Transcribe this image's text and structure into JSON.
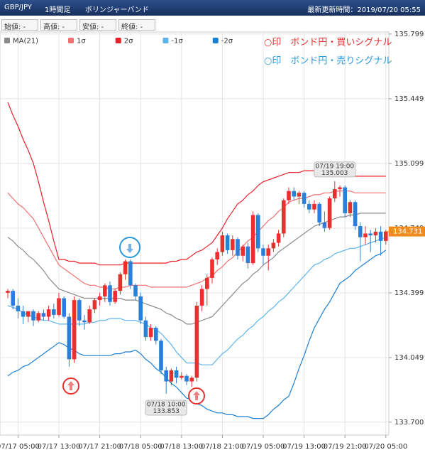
{
  "chart_data": {
    "type": "candlestick",
    "title": "GBP/JPY",
    "timeframe": "1時間足",
    "subtitle": "ボリンジャーバンド",
    "updated": "最新更新時間：2019/07/20 05:55",
    "ohlc_labels": [
      "始値: -",
      "高値: -",
      "安値: -",
      "終値: -"
    ],
    "annotations": [
      "○印　ボンド円・買いシグナル",
      "○印　ボンド円・売りシグナル"
    ],
    "annotation_colors": [
      "#e8302f",
      "#2a9ad8"
    ],
    "up_color": "#e8302f",
    "down_color": "#2a7fd8",
    "last_price_color": "#f08c1e",
    "grid": true,
    "categories": [
      null,
      null,
      "07/17 05:00",
      null,
      null,
      null,
      null,
      null,
      null,
      null,
      "07/17 13:00",
      null,
      null,
      null,
      null,
      null,
      null,
      null,
      "07/17 21:00",
      null,
      null,
      null,
      null,
      null,
      null,
      null,
      "07/18 05:00",
      null,
      null,
      null,
      null,
      null,
      null,
      null,
      "07/18 13:00",
      null,
      null,
      null,
      null,
      null,
      null,
      null,
      "07/18 21:00",
      null,
      null,
      null,
      null,
      null,
      null,
      null,
      "07/19 05:00",
      null,
      null,
      null,
      null,
      null,
      null,
      null,
      "07/19 13:00",
      null,
      null,
      null,
      null,
      null,
      null,
      null,
      "07/19 21:00",
      null,
      null,
      null,
      null,
      null,
      null,
      null,
      "07/20 05:00"
    ],
    "open": [
      134.4,
      134.41,
      134.33,
      134.3,
      134.27,
      134.3,
      134.25,
      134.29,
      134.27,
      134.31,
      134.28,
      134.37,
      134.27,
      134.04,
      134.36,
      134.25,
      134.24,
      134.31,
      134.36,
      134.38,
      134.44,
      134.35,
      134.41,
      134.5,
      134.57,
      134.44,
      134.38,
      134.25,
      134.16,
      134.21,
      134.14,
      133.98,
      133.92,
      133.98,
      133.94,
      133.95,
      133.92,
      133.94,
      134.33,
      134.42,
      134.48,
      134.58,
      134.62,
      134.71,
      134.63,
      134.69,
      134.6,
      134.65,
      134.56,
      134.82,
      134.64,
      134.6,
      134.64,
      134.67,
      134.72,
      134.9,
      134.95,
      134.92,
      134.94,
      134.88,
      134.85,
      134.88,
      134.78,
      134.75,
      134.91,
      134.96,
      134.97,
      134.83,
      134.89,
      134.76,
      134.7,
      134.72,
      134.71,
      134.73,
      134.68
    ],
    "high": [
      134.42,
      134.42,
      134.37,
      134.33,
      134.3,
      134.31,
      134.3,
      134.31,
      134.33,
      134.34,
      134.4,
      134.38,
      134.29,
      134.38,
      134.37,
      134.28,
      134.33,
      134.37,
      134.4,
      134.45,
      134.46,
      134.42,
      134.51,
      134.58,
      134.58,
      134.45,
      134.4,
      134.27,
      134.23,
      134.22,
      134.15,
      134.0,
      133.99,
      134.0,
      133.97,
      133.96,
      133.95,
      134.35,
      134.44,
      134.5,
      134.59,
      134.64,
      134.73,
      134.72,
      134.71,
      134.7,
      134.66,
      134.67,
      134.84,
      134.83,
      134.66,
      134.66,
      134.69,
      134.74,
      134.91,
      134.97,
      134.97,
      134.95,
      134.95,
      134.9,
      134.9,
      134.89,
      134.84,
      134.92,
      135.003,
      134.98,
      134.98,
      134.9,
      134.9,
      134.78,
      134.76,
      134.74,
      134.75,
      134.76,
      134.74
    ],
    "low": [
      134.37,
      134.31,
      134.26,
      134.23,
      134.24,
      134.22,
      134.24,
      134.25,
      134.25,
      134.26,
      134.27,
      134.26,
      134.0,
      134.02,
      134.22,
      134.2,
      134.23,
      134.29,
      134.33,
      134.35,
      134.33,
      134.34,
      134.39,
      134.47,
      134.42,
      134.36,
      134.23,
      134.14,
      134.14,
      134.12,
      133.96,
      133.853,
      133.9,
      133.91,
      133.93,
      133.9,
      133.89,
      133.92,
      134.3,
      134.33,
      134.45,
      134.55,
      134.6,
      134.61,
      134.6,
      134.58,
      134.57,
      134.53,
      134.55,
      134.62,
      134.55,
      134.52,
      134.62,
      134.65,
      134.7,
      134.88,
      134.9,
      134.88,
      134.86,
      134.83,
      134.83,
      134.76,
      134.73,
      134.74,
      134.89,
      134.92,
      134.81,
      134.81,
      134.74,
      134.57,
      134.66,
      134.62,
      134.67,
      134.6,
      134.66
    ],
    "close": [
      134.41,
      134.33,
      134.3,
      134.27,
      134.3,
      134.25,
      134.29,
      134.27,
      134.31,
      134.28,
      134.37,
      134.27,
      134.04,
      134.36,
      134.25,
      134.24,
      134.31,
      134.36,
      134.38,
      134.44,
      134.35,
      134.41,
      134.5,
      134.57,
      134.44,
      134.38,
      134.25,
      134.16,
      134.21,
      134.14,
      133.98,
      133.92,
      133.98,
      133.94,
      133.95,
      133.92,
      133.94,
      134.33,
      134.42,
      134.48,
      134.58,
      134.62,
      134.71,
      134.63,
      134.69,
      134.6,
      134.65,
      134.56,
      134.82,
      134.64,
      134.6,
      134.64,
      134.67,
      134.72,
      134.9,
      134.95,
      134.92,
      134.94,
      134.88,
      134.85,
      134.88,
      134.78,
      134.75,
      134.91,
      134.96,
      134.97,
      134.83,
      134.89,
      134.76,
      134.7,
      134.72,
      134.71,
      134.73,
      134.68,
      134.731
    ],
    "series": [
      {
        "name": "MA(21)",
        "color": "#8a8a8a",
        "values": [
          134.7,
          134.68,
          134.65,
          134.63,
          134.6,
          134.58,
          134.55,
          134.52,
          134.48,
          134.45,
          134.42,
          134.41,
          134.4,
          134.39,
          134.38,
          134.37,
          134.37,
          134.37,
          134.37,
          134.37,
          134.37,
          134.37,
          134.37,
          134.36,
          134.36,
          134.36,
          134.35,
          134.34,
          134.33,
          134.32,
          134.31,
          134.29,
          134.28,
          134.26,
          134.25,
          134.23,
          134.23,
          134.24,
          134.25,
          134.26,
          134.27,
          134.3,
          134.33,
          134.36,
          134.39,
          134.42,
          134.45,
          134.47,
          134.5,
          134.52,
          134.55,
          134.57,
          134.59,
          134.62,
          134.64,
          134.66,
          134.68,
          134.7,
          134.72,
          134.74,
          134.76,
          134.77,
          134.78,
          134.79,
          134.8,
          134.81,
          134.81,
          134.82,
          134.82,
          134.83,
          134.83,
          134.83,
          134.83,
          134.83,
          134.83
        ]
      },
      {
        "name": "1σ",
        "color": "#f07070",
        "values": [
          134.94,
          134.91,
          134.88,
          134.86,
          134.83,
          134.8,
          134.75,
          134.7,
          134.65,
          134.6,
          134.55,
          134.53,
          134.51,
          134.49,
          134.47,
          134.45,
          134.44,
          134.44,
          134.43,
          134.43,
          134.42,
          134.42,
          134.43,
          134.43,
          134.44,
          134.44,
          134.44,
          134.44,
          134.43,
          134.43,
          134.43,
          134.43,
          134.43,
          134.43,
          134.43,
          134.43,
          134.44,
          134.45,
          134.46,
          134.48,
          134.49,
          134.52,
          134.54,
          134.57,
          134.59,
          134.62,
          134.65,
          134.68,
          134.7,
          134.73,
          134.76,
          134.79,
          134.81,
          134.84,
          134.86,
          134.89,
          134.9,
          134.91,
          134.91,
          134.92,
          134.93,
          134.93,
          134.94,
          134.94,
          134.95,
          134.95,
          134.95,
          134.95,
          134.94,
          134.94,
          134.94,
          134.94,
          134.94,
          134.94,
          134.94
        ]
      },
      {
        "name": "2σ",
        "color": "#e8202a",
        "values": [
          135.43,
          135.36,
          135.3,
          135.23,
          135.17,
          135.1,
          135.0,
          134.89,
          134.79,
          134.68,
          134.58,
          134.58,
          134.57,
          134.57,
          134.56,
          134.56,
          134.56,
          134.56,
          134.55,
          134.55,
          134.55,
          134.55,
          134.55,
          134.56,
          134.56,
          134.56,
          134.56,
          134.56,
          134.56,
          134.56,
          134.56,
          134.56,
          134.57,
          134.57,
          134.58,
          134.58,
          134.6,
          134.62,
          134.63,
          134.65,
          134.67,
          134.71,
          134.75,
          134.8,
          134.84,
          134.88,
          134.9,
          134.93,
          134.95,
          134.98,
          135.0,
          135.01,
          135.02,
          135.03,
          135.04,
          135.05,
          135.05,
          135.05,
          135.06,
          135.06,
          135.06,
          135.05,
          135.05,
          135.04,
          135.04,
          135.03,
          135.03,
          135.03,
          135.03,
          135.03,
          135.03,
          135.03,
          135.03,
          135.03,
          135.03
        ]
      },
      {
        "name": "-1σ",
        "color": "#5bb4ec",
        "values": [
          134.33,
          134.32,
          134.31,
          134.29,
          134.28,
          134.27,
          134.26,
          134.25,
          134.25,
          134.24,
          134.23,
          134.23,
          134.23,
          134.23,
          134.23,
          134.23,
          134.24,
          134.24,
          134.25,
          134.25,
          134.26,
          134.26,
          134.26,
          134.25,
          134.25,
          134.25,
          134.24,
          134.23,
          134.21,
          134.2,
          134.18,
          134.15,
          134.12,
          134.08,
          134.05,
          134.02,
          134.02,
          134.02,
          134.01,
          134.01,
          134.01,
          134.04,
          134.07,
          134.09,
          134.12,
          134.15,
          134.17,
          134.2,
          134.22,
          134.25,
          134.27,
          134.3,
          134.32,
          134.35,
          134.37,
          134.4,
          134.43,
          134.46,
          134.49,
          134.52,
          134.55,
          134.56,
          134.58,
          134.59,
          134.61,
          134.62,
          134.63,
          134.64,
          134.64,
          134.65,
          134.66,
          134.67,
          134.68,
          134.69,
          134.7
        ]
      },
      {
        "name": "-2σ",
        "color": "#1d7fd0",
        "values": [
          133.95,
          133.97,
          133.98,
          134.0,
          134.01,
          134.03,
          134.05,
          134.07,
          134.09,
          134.11,
          134.13,
          134.12,
          134.1,
          134.09,
          134.07,
          134.06,
          134.06,
          134.06,
          134.06,
          134.06,
          134.06,
          134.07,
          134.07,
          134.08,
          134.08,
          134.09,
          134.07,
          134.04,
          134.02,
          133.99,
          133.97,
          133.94,
          133.91,
          133.89,
          133.86,
          133.83,
          133.82,
          133.8,
          133.79,
          133.77,
          133.76,
          133.75,
          133.75,
          133.74,
          133.74,
          133.73,
          133.73,
          133.73,
          133.72,
          133.72,
          133.72,
          133.74,
          133.77,
          133.79,
          133.82,
          133.84,
          133.91,
          133.99,
          134.06,
          134.14,
          134.21,
          134.26,
          134.31,
          134.35,
          134.4,
          134.45,
          134.47,
          134.49,
          134.52,
          134.54,
          134.56,
          134.58,
          134.6,
          134.61,
          134.63
        ]
      }
    ],
    "callouts": [
      {
        "time": "07/18 10:00",
        "value": 133.853,
        "at": "low"
      },
      {
        "time": "07/19 19:00",
        "value": 135.003,
        "at": "high"
      }
    ],
    "ylim": [
      133.63,
      135.81
    ],
    "yticks": [
      {
        "value": 133.7,
        "label": "133.700"
      },
      134.049,
      134.399,
      134.749,
      135.099,
      135.449,
      135.799
    ]
  }
}
